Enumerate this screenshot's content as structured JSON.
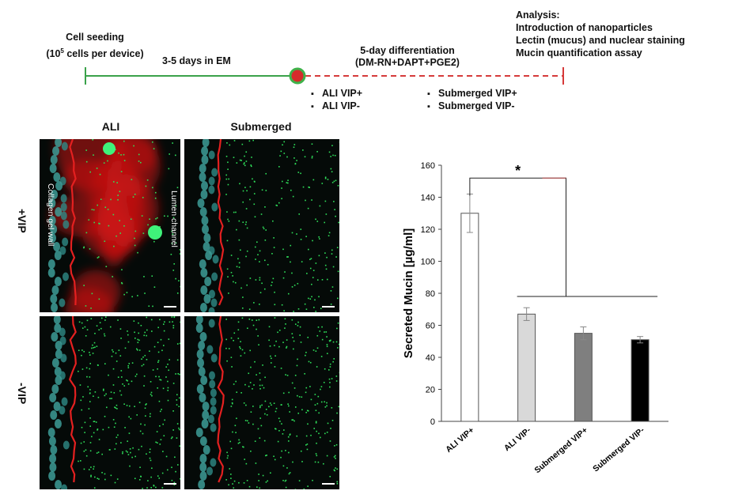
{
  "timeline": {
    "seeding_title": "Cell seeding",
    "seeding_detail_pre": "(10",
    "seeding_detail_sup": "5",
    "seeding_detail_post": " cells per device)",
    "em_label": "3-5 days in EM",
    "diff_title": "5-day differentiation",
    "diff_detail": "(DM-RN+DAPT+PGE2)",
    "conditions_left": [
      "ALI VIP+",
      "ALI VIP-"
    ],
    "conditions_right": [
      "Submerged VIP+",
      "Submerged VIP-"
    ],
    "analysis": [
      "Analysis:",
      "Introduction of nanoparticles",
      "Lectin (mucus) and nuclear staining",
      "Mucin quantification assay"
    ],
    "colors": {
      "solid": "#3aa24a",
      "dashed": "#d63a3a",
      "dot_fill": "#d62b2b",
      "dot_ring": "#3fb24a"
    }
  },
  "images": {
    "col_headers": [
      "ALI",
      "Submerged"
    ],
    "row_headers": [
      "+VIP",
      "-VIP"
    ],
    "labels": {
      "gel_wall": "Collagen gel wall",
      "lumen": "Lumen channel"
    }
  },
  "chart_data": {
    "type": "bar",
    "categories": [
      "ALI VIP+",
      "ALI VIP-",
      "Submerged VIP+",
      "Submerged VIP-"
    ],
    "values": [
      130,
      67,
      55,
      51
    ],
    "errors": [
      12,
      4,
      4,
      2
    ],
    "colors": [
      "#ffffff",
      "#d9d9d9",
      "#7f7f7f",
      "#000000"
    ],
    "ylabel": "Secreted Mucin [µg/ml]",
    "ylim": [
      0,
      160
    ],
    "yticks": [
      0,
      20,
      40,
      60,
      80,
      100,
      120,
      140,
      160
    ],
    "significance": "*",
    "grid": false
  }
}
